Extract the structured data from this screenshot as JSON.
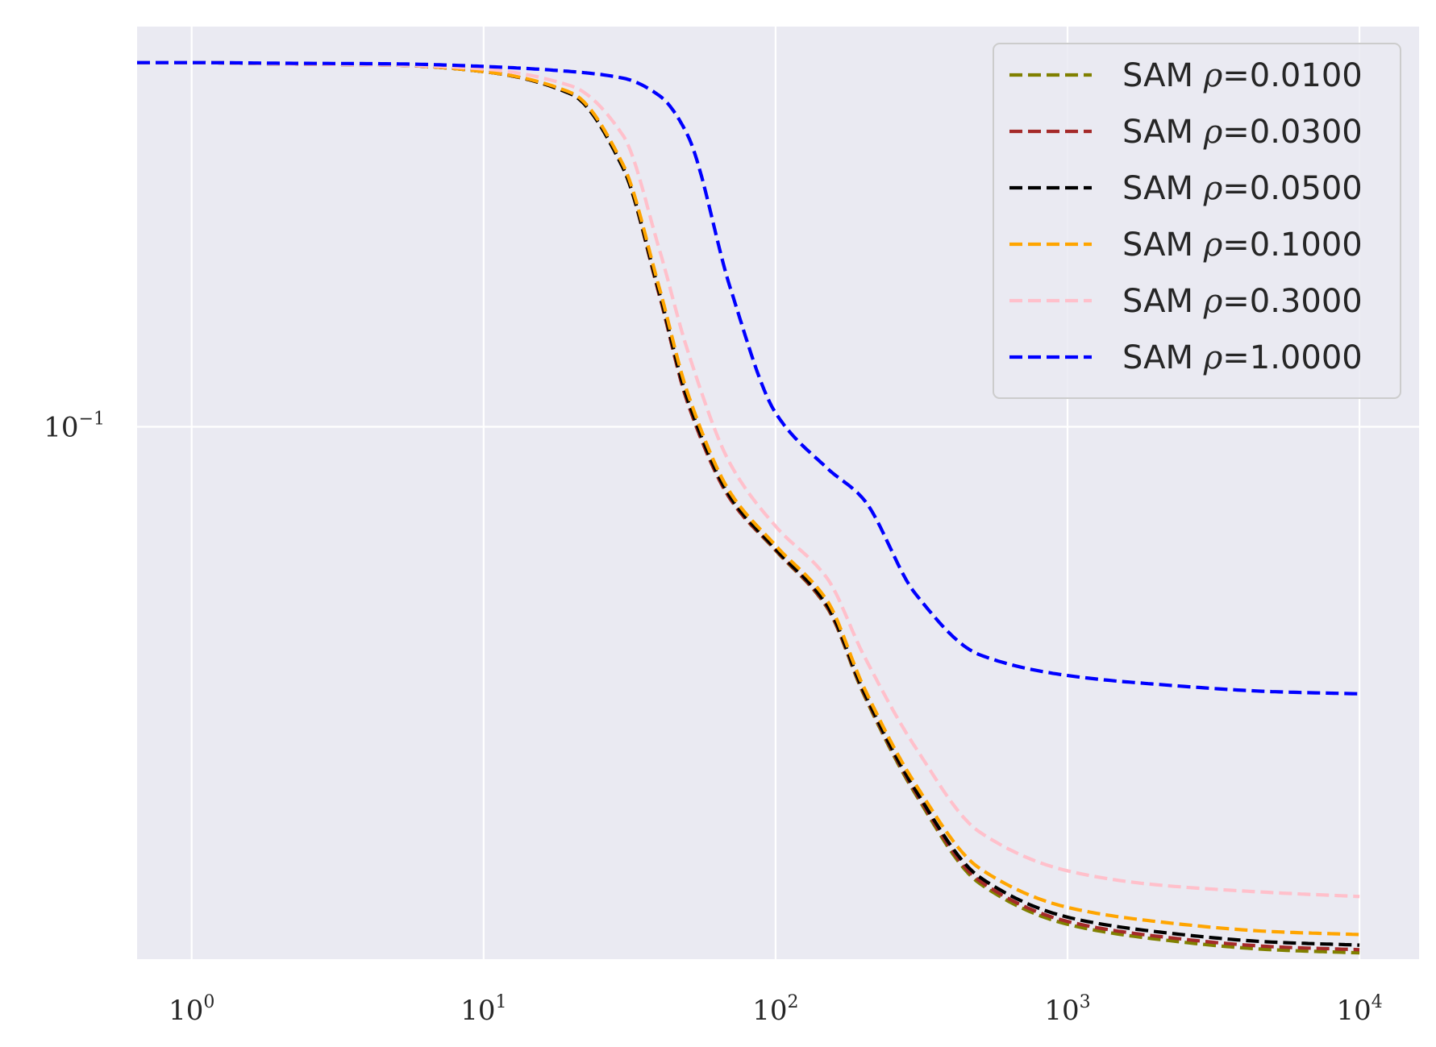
{
  "chart_data": {
    "type": "line",
    "title": "",
    "xlabel": "",
    "ylabel": "",
    "xscale": "log",
    "yscale": "log",
    "xlim": [
      0.65,
      16000
    ],
    "ylim": [
      0.0222,
      0.31
    ],
    "grid": true,
    "legend_position": "top-right",
    "x_ticks": [
      {
        "value": 1,
        "base": "10",
        "exp": "0"
      },
      {
        "value": 10,
        "base": "10",
        "exp": "1"
      },
      {
        "value": 100,
        "base": "10",
        "exp": "2"
      },
      {
        "value": 1000,
        "base": "10",
        "exp": "3"
      },
      {
        "value": 10000,
        "base": "10",
        "exp": "4"
      }
    ],
    "y_ticks": [
      {
        "value": 0.1,
        "base": "10",
        "exp": "−1"
      }
    ],
    "x": [
      0.65,
      1,
      2,
      5,
      10,
      20,
      30,
      40,
      50,
      70,
      100,
      150,
      200,
      300,
      500,
      1000,
      2000,
      5000,
      10000
    ],
    "series": [
      {
        "name": "SAM ρ=0.0100",
        "prefix": "SAM",
        "param": "ρ=0.0100",
        "color": "#808000",
        "values": [
          0.28,
          0.28,
          0.279,
          0.278,
          0.273,
          0.256,
          0.208,
          0.145,
          0.107,
          0.0815,
          0.0705,
          0.06,
          0.047,
          0.0355,
          0.0275,
          0.0245,
          0.0235,
          0.0228,
          0.0226
        ]
      },
      {
        "name": "SAM ρ=0.0300",
        "prefix": "SAM",
        "param": "ρ=0.0300",
        "color": "#a52a2a",
        "values": [
          0.28,
          0.28,
          0.279,
          0.278,
          0.273,
          0.256,
          0.208,
          0.145,
          0.107,
          0.0815,
          0.0706,
          0.0601,
          0.0472,
          0.0357,
          0.0277,
          0.0247,
          0.0237,
          0.023,
          0.0228
        ]
      },
      {
        "name": "SAM ρ=0.0500",
        "prefix": "SAM",
        "param": "ρ=0.0500",
        "color": "#000000",
        "values": [
          0.28,
          0.28,
          0.279,
          0.278,
          0.273,
          0.256,
          0.208,
          0.146,
          0.108,
          0.082,
          0.0708,
          0.0604,
          0.0474,
          0.0359,
          0.028,
          0.025,
          0.024,
          0.0233,
          0.0231
        ]
      },
      {
        "name": "SAM ρ=0.1000",
        "prefix": "SAM",
        "param": "ρ=0.1000",
        "color": "#ffa500",
        "values": [
          0.28,
          0.28,
          0.279,
          0.278,
          0.273,
          0.257,
          0.21,
          0.148,
          0.11,
          0.083,
          0.0715,
          0.0612,
          0.048,
          0.0365,
          0.0287,
          0.0257,
          0.0247,
          0.024,
          0.0238
        ]
      },
      {
        "name": "SAM ρ=0.3000",
        "prefix": "SAM",
        "param": "ρ=0.3000",
        "color": "#ffc0cb",
        "values": [
          0.28,
          0.28,
          0.279,
          0.278,
          0.275,
          0.262,
          0.228,
          0.165,
          0.124,
          0.09,
          0.0755,
          0.0652,
          0.0525,
          0.0405,
          0.0318,
          0.0285,
          0.0274,
          0.0268,
          0.0265
        ]
      },
      {
        "name": "SAM ρ=1.0000",
        "prefix": "SAM",
        "param": "ρ=1.0000",
        "color": "#0000ff",
        "values": [
          0.28,
          0.28,
          0.2795,
          0.279,
          0.277,
          0.273,
          0.268,
          0.255,
          0.228,
          0.148,
          0.104,
          0.089,
          0.0815,
          0.0625,
          0.0525,
          0.0495,
          0.0483,
          0.0473,
          0.047
        ]
      }
    ]
  }
}
